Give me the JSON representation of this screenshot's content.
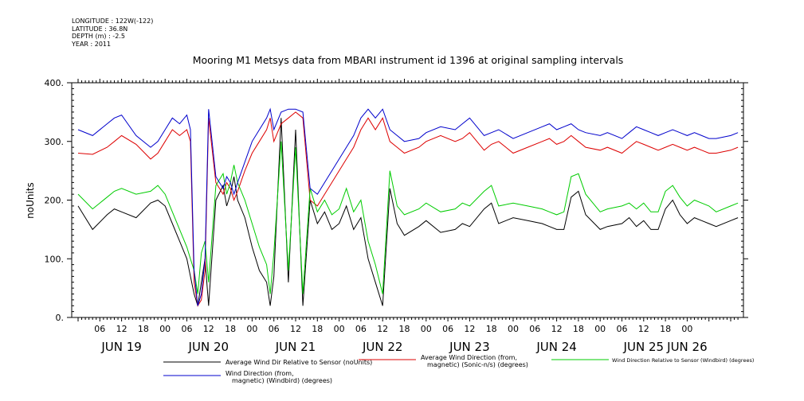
{
  "header": {
    "longitude": "LONGITUDE : 122W(-122)",
    "latitude": "LATITUDE : 36.8N",
    "depth": "DEPTH (m) : -2.5",
    "year": "YEAR : 2011"
  },
  "chart_data": {
    "type": "line",
    "title": "Mooring M1 Metsys data from MBARI instrument id 1396 at original sampling intervals",
    "ylabel": "noUnits",
    "xlabel": "",
    "ylim": [
      0,
      400
    ],
    "xlim": [
      0,
      182
    ],
    "y_ticks": [
      "0.",
      "100.",
      "200.",
      "300.",
      "400."
    ],
    "x_hour_ticks": [
      {
        "label": "06",
        "h": 6
      },
      {
        "label": "12",
        "h": 12
      },
      {
        "label": "18",
        "h": 18
      },
      {
        "label": "00",
        "h": 24
      },
      {
        "label": "06",
        "h": 30
      },
      {
        "label": "12",
        "h": 36
      },
      {
        "label": "18",
        "h": 42
      },
      {
        "label": "00",
        "h": 48
      },
      {
        "label": "06",
        "h": 54
      },
      {
        "label": "12",
        "h": 60
      },
      {
        "label": "18",
        "h": 66
      },
      {
        "label": "00",
        "h": 72
      },
      {
        "label": "06",
        "h": 78
      },
      {
        "label": "12",
        "h": 84
      },
      {
        "label": "18",
        "h": 90
      },
      {
        "label": "00",
        "h": 96
      },
      {
        "label": "06",
        "h": 102
      },
      {
        "label": "12",
        "h": 108
      },
      {
        "label": "18",
        "h": 114
      },
      {
        "label": "00",
        "h": 120
      },
      {
        "label": "06",
        "h": 126
      },
      {
        "label": "12",
        "h": 132
      },
      {
        "label": "18",
        "h": 138
      },
      {
        "label": "00",
        "h": 144
      },
      {
        "label": "06",
        "h": 150
      },
      {
        "label": "12",
        "h": 156
      },
      {
        "label": "18",
        "h": 162
      },
      {
        "label": "00",
        "h": 168
      }
    ],
    "x_day_labels": [
      {
        "label": "JUN 19",
        "h": 12
      },
      {
        "label": "JUN 20",
        "h": 36
      },
      {
        "label": "JUN 21",
        "h": 60
      },
      {
        "label": "JUN 22",
        "h": 84
      },
      {
        "label": "JUN 23",
        "h": 108
      },
      {
        "label": "JUN 24",
        "h": 132
      },
      {
        "label": "JUN 25",
        "h": 156
      },
      {
        "label": "JUN 26",
        "h": 168
      }
    ],
    "grid": false,
    "legend_position": "bottom",
    "series": [
      {
        "name": "Average Wind Dir Relative to Sensor (noUnits)",
        "color": "#000000",
        "x": [
          0,
          4,
          8,
          10,
          12,
          16,
          20,
          22,
          24,
          26,
          28,
          30,
          31,
          32,
          33,
          34,
          35,
          36,
          38,
          40,
          41,
          42,
          43,
          44,
          46,
          48,
          50,
          52,
          53,
          54,
          56,
          58,
          60,
          62,
          64,
          66,
          68,
          70,
          72,
          74,
          76,
          78,
          80,
          82,
          84,
          86,
          88,
          90,
          94,
          96,
          100,
          104,
          106,
          108,
          112,
          114,
          116,
          120,
          124,
          128,
          130,
          132,
          134,
          136,
          138,
          140,
          144,
          146,
          150,
          152,
          154,
          156,
          158,
          160,
          162,
          164,
          166,
          168,
          170,
          172,
          174,
          176,
          180,
          182
        ],
        "y": [
          190,
          150,
          175,
          185,
          180,
          170,
          195,
          200,
          190,
          160,
          130,
          100,
          70,
          40,
          20,
          60,
          100,
          20,
          200,
          225,
          190,
          210,
          240,
          200,
          170,
          120,
          80,
          60,
          20,
          70,
          340,
          60,
          320,
          20,
          200,
          160,
          180,
          150,
          160,
          190,
          150,
          170,
          100,
          60,
          20,
          220,
          160,
          140,
          155,
          165,
          145,
          150,
          160,
          155,
          185,
          195,
          160,
          170,
          165,
          160,
          155,
          150,
          150,
          205,
          215,
          175,
          150,
          155,
          160,
          170,
          155,
          165,
          150,
          150,
          185,
          200,
          175,
          160,
          170,
          165,
          160,
          155,
          165,
          170
        ]
      },
      {
        "name": "Average Wind Direction (from, magnetic) (Sonic-n/s) (degrees)",
        "color": "#dd0000",
        "x": [
          0,
          4,
          8,
          10,
          12,
          16,
          20,
          22,
          24,
          26,
          28,
          30,
          31,
          32,
          33,
          34,
          35,
          36,
          38,
          40,
          41,
          42,
          43,
          44,
          46,
          48,
          50,
          52,
          53,
          54,
          56,
          58,
          60,
          62,
          64,
          66,
          68,
          70,
          72,
          74,
          76,
          78,
          80,
          82,
          84,
          86,
          88,
          90,
          94,
          96,
          100,
          104,
          106,
          108,
          112,
          114,
          116,
          120,
          124,
          128,
          130,
          132,
          134,
          136,
          138,
          140,
          144,
          146,
          150,
          152,
          154,
          156,
          158,
          160,
          162,
          164,
          166,
          168,
          170,
          172,
          174,
          176,
          180,
          182
        ],
        "y": [
          280,
          278,
          290,
          300,
          310,
          295,
          270,
          280,
          300,
          320,
          310,
          320,
          300,
          60,
          20,
          30,
          80,
          340,
          230,
          210,
          230,
          220,
          200,
          215,
          250,
          280,
          300,
          320,
          340,
          300,
          330,
          340,
          350,
          340,
          200,
          190,
          210,
          230,
          250,
          270,
          290,
          320,
          340,
          320,
          340,
          300,
          290,
          280,
          290,
          300,
          310,
          300,
          305,
          315,
          285,
          295,
          300,
          280,
          290,
          300,
          305,
          295,
          300,
          310,
          300,
          290,
          285,
          290,
          280,
          290,
          300,
          295,
          290,
          285,
          290,
          295,
          290,
          285,
          290,
          285,
          280,
          280,
          285,
          290
        ]
      },
      {
        "name": "Wind Direction Relative to Sensor (Windbird) (degrees)",
        "color": "#00cc00",
        "x": [
          0,
          4,
          8,
          10,
          12,
          16,
          20,
          22,
          24,
          26,
          28,
          30,
          31,
          32,
          33,
          34,
          35,
          36,
          38,
          40,
          41,
          42,
          43,
          44,
          46,
          48,
          50,
          52,
          53,
          54,
          56,
          58,
          60,
          62,
          64,
          66,
          68,
          70,
          72,
          74,
          76,
          78,
          80,
          82,
          84,
          86,
          88,
          90,
          94,
          96,
          100,
          104,
          106,
          108,
          112,
          114,
          116,
          120,
          124,
          128,
          130,
          132,
          134,
          136,
          138,
          140,
          144,
          146,
          150,
          152,
          154,
          156,
          158,
          160,
          162,
          164,
          166,
          168,
          170,
          172,
          174,
          176,
          180,
          182
        ],
        "y": [
          210,
          185,
          205,
          215,
          220,
          210,
          215,
          225,
          210,
          180,
          150,
          120,
          100,
          80,
          40,
          110,
          130,
          60,
          225,
          245,
          210,
          230,
          260,
          230,
          200,
          160,
          120,
          90,
          40,
          110,
          300,
          80,
          290,
          40,
          220,
          180,
          200,
          175,
          185,
          220,
          180,
          200,
          130,
          90,
          40,
          250,
          190,
          175,
          185,
          195,
          180,
          185,
          195,
          190,
          215,
          225,
          190,
          195,
          190,
          185,
          180,
          175,
          180,
          240,
          245,
          210,
          180,
          185,
          190,
          195,
          185,
          195,
          180,
          180,
          215,
          225,
          205,
          190,
          200,
          195,
          190,
          180,
          190,
          195
        ]
      },
      {
        "name": "Wind Direction (from, magnetic) (Windbird) (degrees)",
        "color": "#0000cc",
        "x": [
          0,
          4,
          8,
          10,
          12,
          16,
          20,
          22,
          24,
          26,
          28,
          30,
          31,
          32,
          33,
          34,
          35,
          36,
          38,
          40,
          41,
          42,
          43,
          44,
          46,
          48,
          50,
          52,
          53,
          54,
          56,
          58,
          60,
          62,
          64,
          66,
          68,
          70,
          72,
          74,
          76,
          78,
          80,
          82,
          84,
          86,
          88,
          90,
          94,
          96,
          100,
          104,
          106,
          108,
          112,
          114,
          116,
          120,
          124,
          128,
          130,
          132,
          134,
          136,
          138,
          140,
          144,
          146,
          150,
          152,
          154,
          156,
          158,
          160,
          162,
          164,
          166,
          168,
          170,
          172,
          174,
          176,
          180,
          182
        ],
        "y": [
          320,
          310,
          330,
          340,
          345,
          310,
          290,
          300,
          320,
          340,
          330,
          345,
          320,
          80,
          20,
          40,
          100,
          355,
          240,
          220,
          240,
          230,
          210,
          230,
          265,
          300,
          320,
          340,
          355,
          320,
          350,
          355,
          355,
          350,
          220,
          210,
          230,
          250,
          270,
          290,
          310,
          340,
          355,
          340,
          355,
          320,
          310,
          300,
          305,
          315,
          325,
          320,
          330,
          340,
          310,
          315,
          320,
          305,
          315,
          325,
          330,
          320,
          325,
          330,
          320,
          315,
          310,
          315,
          305,
          315,
          325,
          320,
          315,
          310,
          315,
          320,
          315,
          310,
          315,
          310,
          305,
          305,
          310,
          315
        ]
      }
    ]
  },
  "legend": [
    {
      "line1": "Average Wind Dir Relative to Sensor (noUnits)",
      "line2": ""
    },
    {
      "line1": "Average Wind Direction (from,",
      "line2": "magnetic) (Sonic-n/s) (degrees)"
    },
    {
      "line1": "Wind Direction Relative to Sensor (Windbird) (degrees)",
      "line2": ""
    },
    {
      "line1": "Wind Direction (from,",
      "line2": "magnetic) (Windbird) (degrees)"
    }
  ]
}
